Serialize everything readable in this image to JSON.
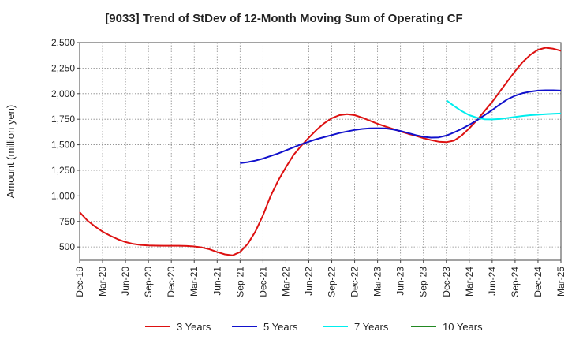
{
  "chart_data": {
    "type": "line",
    "title": "[9033]  Trend of StDev of 12-Month Moving Sum of Operating CF",
    "xlabel": "",
    "ylabel": "Amount (million yen)",
    "ylim": [
      370,
      2500
    ],
    "yticks": [
      500,
      750,
      1000,
      1250,
      1500,
      1750,
      2000,
      2250,
      2500
    ],
    "ytick_labels": [
      "500",
      "750",
      "1,000",
      "1,250",
      "1,500",
      "1,750",
      "2,000",
      "2,250",
      "2,500"
    ],
    "x_tick_labels": [
      "Dec-19",
      "Mar-20",
      "Jun-20",
      "Sep-20",
      "Dec-20",
      "Mar-21",
      "Jun-21",
      "Sep-21",
      "Dec-21",
      "Mar-22",
      "Jun-22",
      "Sep-22",
      "Dec-22",
      "Mar-23",
      "Jun-23",
      "Sep-23",
      "Dec-23",
      "Mar-24",
      "Jun-24",
      "Sep-24",
      "Dec-24",
      "Mar-25"
    ],
    "x_range_months": [
      0,
      63
    ],
    "grid": true,
    "legend_position": "bottom",
    "series": [
      {
        "name": "3 Years",
        "color": "#dd1111",
        "start_month": 0,
        "values": [
          840,
          760,
          700,
          650,
          610,
          575,
          548,
          530,
          520,
          515,
          513,
          512,
          512,
          512,
          510,
          505,
          495,
          478,
          450,
          428,
          418,
          450,
          530,
          650,
          810,
          1000,
          1150,
          1280,
          1400,
          1490,
          1570,
          1645,
          1710,
          1760,
          1790,
          1800,
          1790,
          1765,
          1735,
          1705,
          1680,
          1655,
          1630,
          1608,
          1588,
          1565,
          1545,
          1530,
          1525,
          1540,
          1590,
          1660,
          1740,
          1830,
          1920,
          2020,
          2120,
          2220,
          2310,
          2380,
          2430,
          2450,
          2440,
          2420
        ]
      },
      {
        "name": "5 Years",
        "color": "#1111cc",
        "start_month": 21,
        "values": [
          1320,
          1330,
          1345,
          1365,
          1390,
          1415,
          1445,
          1475,
          1505,
          1530,
          1555,
          1575,
          1595,
          1615,
          1630,
          1645,
          1655,
          1660,
          1662,
          1660,
          1650,
          1635,
          1615,
          1595,
          1578,
          1570,
          1572,
          1590,
          1620,
          1655,
          1695,
          1740,
          1790,
          1840,
          1895,
          1945,
          1980,
          2005,
          2020,
          2030,
          2033,
          2033,
          2030
        ]
      },
      {
        "name": "7 Years",
        "color": "#00eeee",
        "start_month": 48,
        "values": [
          1935,
          1880,
          1830,
          1790,
          1765,
          1750,
          1748,
          1752,
          1762,
          1772,
          1782,
          1790,
          1795,
          1800,
          1803,
          1806
        ]
      },
      {
        "name": "10 Years",
        "color": "#228822",
        "start_month": 0,
        "values": []
      }
    ]
  }
}
